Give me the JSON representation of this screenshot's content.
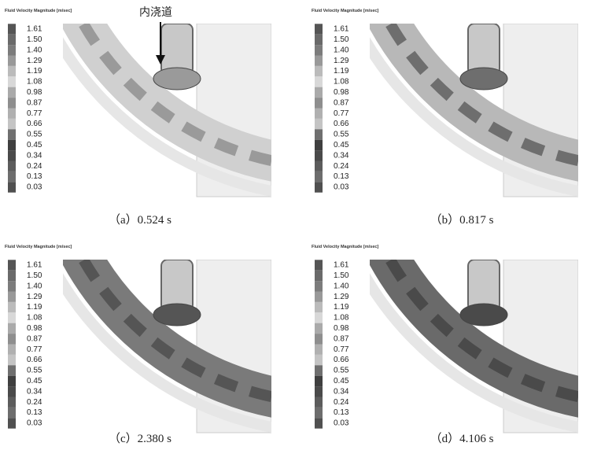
{
  "annotation": "内浇道",
  "panels": [
    {
      "legend_title": "Fluid Velocity Magnitude  [m/sec]",
      "legend_values": [
        "1.61",
        "1.50",
        "1.40",
        "1.29",
        "1.19",
        "1.08",
        "0.98",
        "0.87",
        "0.77",
        "0.66",
        "0.55",
        "0.45",
        "0.34",
        "0.24",
        "0.13",
        "0.03"
      ],
      "caption": "（a）0.524 s"
    },
    {
      "legend_title": "Fluid Velocity Magnitude  [m/sec]",
      "legend_values": [
        "1.61",
        "1.50",
        "1.40",
        "1.29",
        "1.19",
        "1.08",
        "0.98",
        "0.87",
        "0.77",
        "0.66",
        "0.55",
        "0.45",
        "0.34",
        "0.24",
        "0.13",
        "0.03"
      ],
      "caption": "（b）0.817 s"
    },
    {
      "legend_title": "Fluid Velocity Magnitude  [m/sec]",
      "legend_values": [
        "1.61",
        "1.50",
        "1.40",
        "1.29",
        "1.19",
        "1.08",
        "0.98",
        "0.87",
        "0.77",
        "0.66",
        "0.55",
        "0.45",
        "0.34",
        "0.24",
        "0.13",
        "0.03"
      ],
      "caption": "（c）2.380 s"
    },
    {
      "legend_title": "Fluid Velocity Magnitude  [m/sec]",
      "legend_values": [
        "1.61",
        "1.50",
        "1.40",
        "1.29",
        "1.19",
        "1.08",
        "0.98",
        "0.87",
        "0.77",
        "0.66",
        "0.55",
        "0.45",
        "0.34",
        "0.24",
        "0.13",
        "0.03"
      ],
      "caption": "（d）4.106 s"
    }
  ]
}
